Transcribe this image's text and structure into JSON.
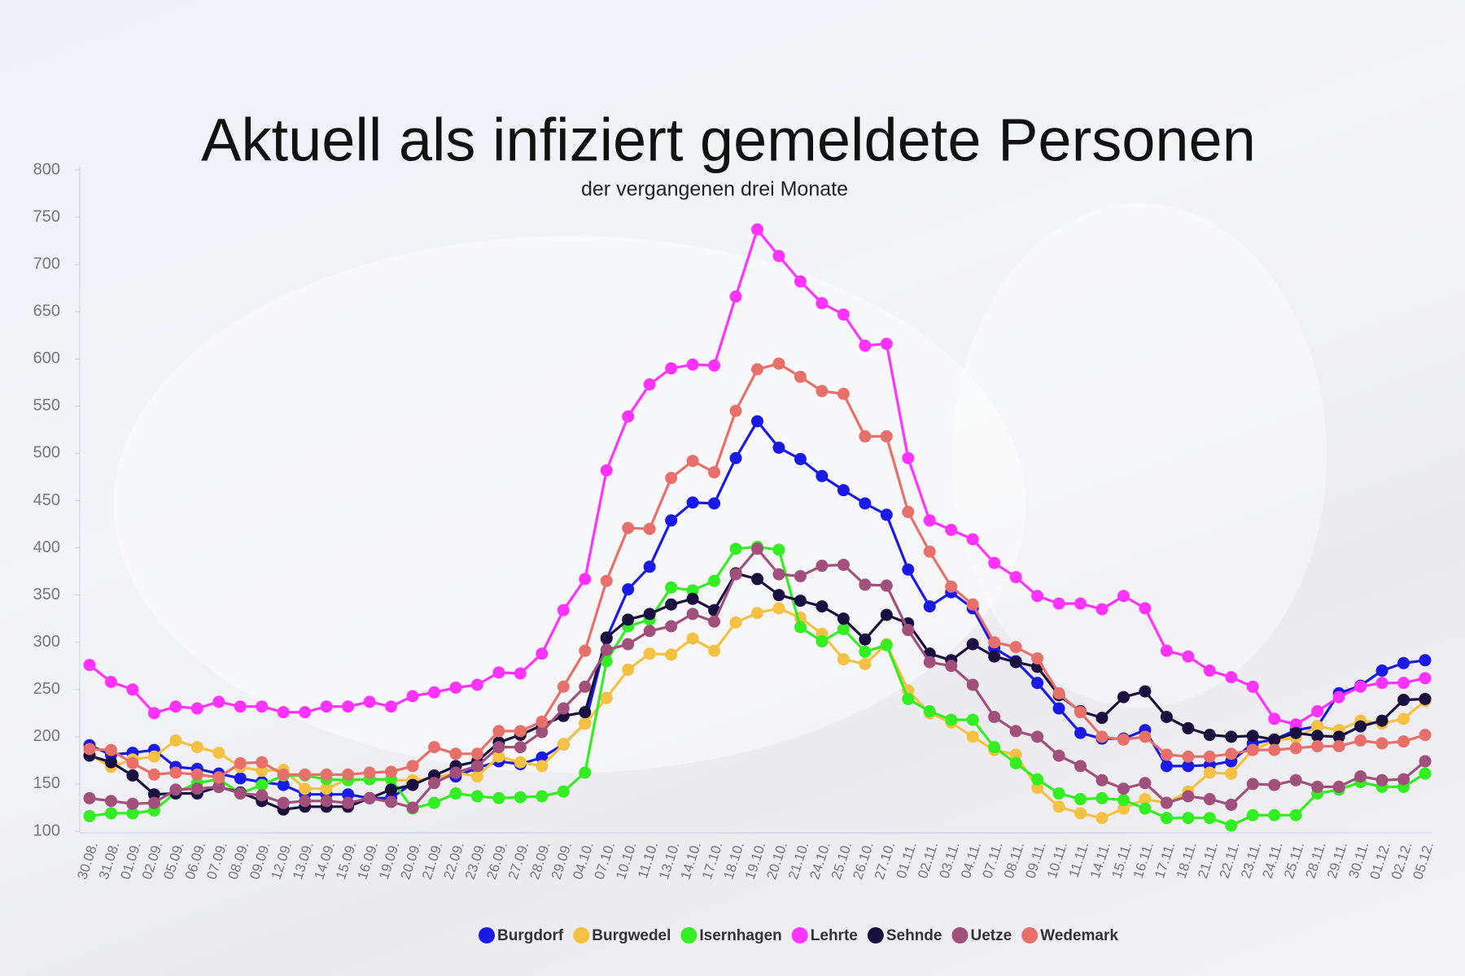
{
  "chart_data": {
    "type": "line",
    "title": "Aktuell als infiziert gemeldete Personen",
    "subtitle": "der vergangenen drei Monate",
    "categories": [
      "30.08.",
      "31.08.",
      "01.09.",
      "02.09.",
      "05.09.",
      "06.09.",
      "07.09.",
      "08.09.",
      "09.09.",
      "12.09.",
      "13.09.",
      "14.09.",
      "15.09.",
      "16.09.",
      "19.09.",
      "20.09.",
      "21.09.",
      "22.09.",
      "23.09.",
      "26.09.",
      "27.09.",
      "28.09.",
      "29.09.",
      "04.10.",
      "07.10.",
      "10.10.",
      "11.10.",
      "13.10.",
      "14.10.",
      "17.10.",
      "18.10.",
      "19.10.",
      "20.10.",
      "21.10.",
      "24.10.",
      "25.10.",
      "26.10.",
      "27.10.",
      "01.11.",
      "02.11.",
      "03.11.",
      "04.11.",
      "07.11.",
      "08.11.",
      "09.11.",
      "10.11.",
      "11.11.",
      "14.11.",
      "15.11.",
      "16.11.",
      "17.11.",
      "18.11.",
      "21.11.",
      "22.11.",
      "23.11.",
      "24.11.",
      "25.11.",
      "28.11.",
      "29.11.",
      "30.11.",
      "01.12.",
      "02.12.",
      "05.12."
    ],
    "series": [
      {
        "name": "Burgdorf",
        "color": "#1a1ae6",
        "values": [
          191,
          181,
          183,
          186,
          168,
          166,
          161,
          156,
          152,
          149,
          139,
          139,
          139,
          135,
          135,
          151,
          158,
          158,
          167,
          174,
          171,
          178,
          192,
          214,
          304,
          356,
          380,
          429,
          448,
          447,
          495,
          534,
          506,
          494,
          476,
          461,
          447,
          435,
          377,
          338,
          353,
          336,
          294,
          280,
          257,
          230,
          204,
          198,
          198,
          207,
          169,
          169,
          170,
          174,
          193,
          197,
          207,
          211,
          246,
          254,
          270,
          278,
          281
        ]
      },
      {
        "name": "Burgwedel",
        "color": "#f5c142",
        "values": [
          181,
          168,
          176,
          179,
          196,
          189,
          183,
          168,
          164,
          165,
          145,
          145,
          155,
          155,
          154,
          154,
          156,
          162,
          158,
          179,
          173,
          169,
          192,
          214,
          241,
          271,
          288,
          287,
          304,
          291,
          321,
          331,
          336,
          326,
          309,
          282,
          277,
          298,
          249,
          225,
          215,
          200,
          186,
          181,
          146,
          126,
          119,
          114,
          124,
          134,
          130,
          142,
          162,
          161,
          186,
          196,
          199,
          211,
          207,
          217,
          214,
          219,
          238
        ]
      },
      {
        "name": "Isernhagen",
        "color": "#33ee22",
        "values": [
          116,
          119,
          119,
          122,
          141,
          151,
          155,
          140,
          149,
          159,
          159,
          155,
          154,
          155,
          155,
          124,
          130,
          140,
          137,
          135,
          136,
          137,
          142,
          162,
          280,
          317,
          324,
          358,
          355,
          365,
          399,
          401,
          398,
          316,
          301,
          314,
          290,
          297,
          240,
          227,
          218,
          218,
          189,
          172,
          155,
          140,
          134,
          135,
          133,
          124,
          114,
          114,
          114,
          106,
          117,
          117,
          117,
          140,
          144,
          152,
          147,
          147,
          161
        ]
      },
      {
        "name": "Lehrte",
        "color": "#ff33ff",
        "values": [
          276,
          258,
          250,
          225,
          232,
          230,
          237,
          232,
          232,
          226,
          226,
          232,
          232,
          237,
          232,
          243,
          247,
          252,
          255,
          268,
          267,
          288,
          334,
          367,
          482,
          539,
          573,
          590,
          594,
          593,
          666,
          737,
          709,
          682,
          659,
          647,
          614,
          616,
          495,
          429,
          419,
          409,
          384,
          369,
          349,
          341,
          341,
          335,
          349,
          336,
          291,
          285,
          270,
          263,
          253,
          219,
          213,
          227,
          242,
          253,
          257,
          257,
          262
        ]
      },
      {
        "name": "Sehnde",
        "color": "#1a1040",
        "values": [
          180,
          173,
          159,
          139,
          140,
          140,
          147,
          141,
          132,
          123,
          126,
          126,
          126,
          135,
          144,
          149,
          159,
          169,
          174,
          194,
          202,
          212,
          222,
          226,
          305,
          324,
          330,
          340,
          346,
          334,
          373,
          367,
          350,
          344,
          338,
          325,
          303,
          329,
          320,
          288,
          281,
          298,
          285,
          279,
          274,
          244,
          227,
          220,
          242,
          248,
          221,
          209,
          202,
          200,
          201,
          197,
          204,
          201,
          200,
          211,
          217,
          239,
          240
        ]
      },
      {
        "name": "Uetze",
        "color": "#a0507a",
        "values": [
          135,
          132,
          129,
          130,
          144,
          145,
          147,
          140,
          138,
          130,
          132,
          132,
          130,
          135,
          131,
          125,
          151,
          162,
          169,
          189,
          189,
          205,
          230,
          253,
          292,
          298,
          312,
          317,
          330,
          322,
          372,
          399,
          372,
          370,
          381,
          382,
          361,
          360,
          313,
          279,
          275,
          255,
          221,
          206,
          200,
          180,
          169,
          154,
          145,
          151,
          130,
          137,
          134,
          128,
          150,
          149,
          154,
          147,
          147,
          158,
          154,
          155,
          174
        ]
      },
      {
        "name": "Wedemark",
        "color": "#e8706a",
        "values": [
          187,
          186,
          172,
          160,
          162,
          160,
          157,
          172,
          173,
          160,
          160,
          160,
          160,
          162,
          163,
          169,
          189,
          182,
          182,
          206,
          206,
          216,
          253,
          291,
          365,
          421,
          420,
          474,
          492,
          480,
          545,
          589,
          595,
          581,
          566,
          563,
          518,
          518,
          438,
          396,
          359,
          340,
          300,
          295,
          283,
          246,
          226,
          200,
          197,
          200,
          181,
          179,
          179,
          182,
          186,
          186,
          188,
          190,
          190,
          196,
          193,
          195,
          202
        ]
      }
    ],
    "ylim": [
      100,
      800
    ],
    "yticks": [
      100,
      150,
      200,
      250,
      300,
      350,
      400,
      450,
      500,
      550,
      600,
      650,
      700,
      750,
      800
    ],
    "grid": false,
    "legend": "bottom"
  }
}
